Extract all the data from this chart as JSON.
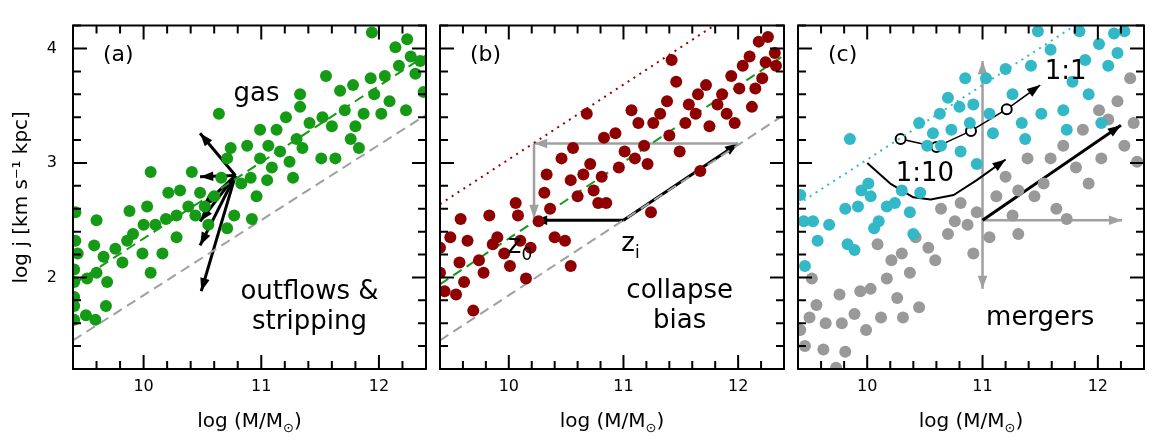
{
  "chart_data": [
    {
      "type": "scatter",
      "xlabel": "log (M/M$_{⊙}$)",
      "ylabel": "log j [km s⁻¹ kpc]",
      "marker": "circle",
      "xlim": [
        9.4,
        12.4
      ],
      "ylim": [
        1.2,
        4.2
      ],
      "xticks": [
        {
          "value": 9.4,
          "label": null
        },
        {
          "value": 9.6,
          "label": null
        },
        {
          "value": 9.8,
          "label": null
        },
        10,
        {
          "value": 10.2,
          "label": null
        },
        {
          "value": 10.4,
          "label": null
        },
        {
          "value": 10.6,
          "label": null
        },
        {
          "value": 10.8,
          "label": null
        },
        11,
        {
          "value": 11.2,
          "label": null
        },
        {
          "value": 11.4,
          "label": null
        },
        {
          "value": 11.6,
          "label": null
        },
        {
          "value": 11.8,
          "label": null
        },
        12,
        {
          "value": 12.2,
          "label": null
        },
        {
          "value": 12.4,
          "label": null
        }
      ],
      "yticks": [
        {
          "value": 1.2,
          "label": null
        },
        {
          "value": 1.4,
          "label": null
        },
        {
          "value": 1.6,
          "label": null
        },
        {
          "value": 1.8,
          "label": null
        },
        2,
        {
          "value": 2.2,
          "label": null
        },
        {
          "value": 2.4,
          "label": null
        },
        {
          "value": 2.6,
          "label": null
        },
        {
          "value": 2.8,
          "label": null
        },
        3,
        {
          "value": 3.2,
          "label": null
        },
        {
          "value": 3.4,
          "label": null
        },
        {
          "value": 3.6,
          "label": null
        },
        {
          "value": 3.8,
          "label": null
        },
        4,
        {
          "value": 4.2,
          "label": null
        }
      ],
      "annotations": [
        "(a)",
        "gas",
        "outflows & stripping"
      ],
      "series": [
        {
          "type": "line",
          "x": [
            9.4,
            12.4
          ],
          "values": [
            1.94,
            3.94
          ],
          "color": "#159a15",
          "line_style": "dashed",
          "marker": "none"
        },
        {
          "type": "line",
          "x": [
            9.4,
            12.4
          ],
          "values": [
            1.45,
            3.42
          ],
          "color": "#a0a0a0",
          "line_style": "dashed",
          "marker": "none"
        },
        {
          "color": "#159a15",
          "x": [
            9.42,
            9.42,
            9.44,
            9.41,
            9.41,
            9.41,
            9.41,
            9.41,
            9.51,
            9.59,
            9.68,
            9.6,
            9.58,
            9.52,
            9.6,
            9.66,
            9.69,
            9.76,
            9.82,
            9.86,
            9.88,
            9.91,
            9.99,
            10.0,
            10.03,
            10.06,
            10.06,
            10.1,
            10.16,
            10.19,
            10.21,
            10.28,
            10.28,
            10.31,
            10.38,
            10.41,
            10.44,
            10.48,
            10.52,
            10.55,
            10.6,
            10.64,
            10.66,
            10.71,
            10.71,
            10.74,
            10.77,
            10.83,
            10.88,
            10.91,
            10.92,
            10.96,
            10.99,
            10.99,
            11.05,
            11.06,
            11.09,
            11.13,
            11.16,
            11.21,
            11.24,
            11.27,
            11.3,
            11.33,
            11.33,
            11.35,
            11.41,
            11.51,
            11.52,
            11.55,
            11.63,
            11.6,
            11.67,
            11.71,
            11.76,
            11.78,
            11.8,
            11.83,
            11.87,
            11.93,
            11.96,
            11.94,
            12.02,
            12.05,
            12.09,
            12.14,
            12.17,
            12.23,
            12.24,
            12.27,
            12.31,
            12.35,
            12.38
          ],
          "values": [
            2.57,
            2.32,
            2.21,
            2.07,
            1.96,
            1.83,
            1.75,
            1.63,
            1.67,
            1.63,
            1.75,
            2.5,
            2.28,
            1.99,
            2.04,
            2.18,
            1.96,
            2.25,
            2.13,
            2.32,
            2.58,
            2.38,
            2.21,
            2.46,
            2.62,
            2.04,
            2.92,
            2.46,
            2.21,
            2.51,
            2.74,
            2.35,
            2.54,
            2.76,
            2.62,
            2.92,
            2.54,
            2.74,
            2.62,
            2.46,
            2.71,
            3.43,
            2.87,
            2.43,
            3.04,
            3.13,
            2.54,
            2.82,
            3.15,
            2.87,
            2.51,
            2.71,
            3.29,
            3.04,
            2.85,
            3.15,
            2.96,
            3.29,
            3.1,
            3.4,
            3.01,
            2.87,
            3.21,
            3.6,
            3.49,
            3.13,
            3.35,
            3.04,
            3.4,
            3.76,
            3.04,
            3.32,
            3.63,
            3.46,
            3.21,
            3.68,
            3.32,
            3.13,
            3.43,
            3.74,
            3.6,
            4.14,
            3.43,
            3.76,
            3.54,
            4.01,
            3.85,
            3.46,
            4.08,
            3.93,
            3.78,
            3.89,
            3.62
          ]
        }
      ]
    },
    {
      "type": "scatter",
      "xlabel": "log (M/M$_{⊙}$)",
      "marker": "circle",
      "tick_labels": "x",
      "xlim": [
        9.4,
        12.4
      ],
      "ylim": [
        1.2,
        4.2
      ],
      "xticks": [
        {
          "value": 9.4,
          "label": null
        },
        {
          "value": 9.6,
          "label": null
        },
        {
          "value": 9.8,
          "label": null
        },
        10,
        {
          "value": 10.2,
          "label": null
        },
        {
          "value": 10.4,
          "label": null
        },
        {
          "value": 10.6,
          "label": null
        },
        {
          "value": 10.8,
          "label": null
        },
        11,
        {
          "value": 11.2,
          "label": null
        },
        {
          "value": 11.4,
          "label": null
        },
        {
          "value": 11.6,
          "label": null
        },
        {
          "value": 11.8,
          "label": null
        },
        12,
        {
          "value": 12.2,
          "label": null
        },
        {
          "value": 12.4,
          "label": null
        }
      ],
      "yticks": [
        {
          "value": 1.2,
          "label": null
        },
        {
          "value": 1.4,
          "label": null
        },
        {
          "value": 1.6,
          "label": null
        },
        {
          "value": 1.8,
          "label": null
        },
        {
          "value": 2,
          "label": null
        },
        {
          "value": 2.2,
          "label": null
        },
        {
          "value": 2.4,
          "label": null
        },
        {
          "value": 2.6,
          "label": null
        },
        {
          "value": 2.8,
          "label": null
        },
        {
          "value": 3,
          "label": null
        },
        {
          "value": 3.2,
          "label": null
        },
        {
          "value": 3.4,
          "label": null
        },
        {
          "value": 3.6,
          "label": null
        },
        {
          "value": 3.8,
          "label": null
        },
        {
          "value": 4,
          "label": null
        },
        {
          "value": 4.2,
          "label": null
        }
      ],
      "annotations": [
        "(b)",
        {
          "text": "z$_{0}$",
          "x": 10.22,
          "y": 2.5
        },
        {
          "text": "z$_{i}$",
          "x": 11,
          "y": 2.5
        },
        "collapse bias"
      ],
      "series": [
        {
          "type": "line",
          "x": [
            9.4,
            12.4
          ],
          "values": [
            1.94,
            3.94
          ],
          "color": "#159a15",
          "line_style": "dashed",
          "marker": "none"
        },
        {
          "type": "line",
          "x": [
            9.4,
            12.4
          ],
          "values": [
            1.45,
            3.42
          ],
          "color": "#a0a0a0",
          "line_style": "dashed",
          "marker": "none"
        },
        {
          "type": "line",
          "x": [
            9.4,
            11.79
          ],
          "values": [
            2.64,
            4.2
          ],
          "color": "#8f0000",
          "line_style": "dotted",
          "marker": "none"
        },
        {
          "color": "#8f0000",
          "x": [
            9.4,
            9.4,
            9.44,
            9.49,
            9.54,
            9.58,
            9.57,
            9.61,
            9.64,
            9.69,
            9.74,
            9.78,
            9.83,
            9.86,
            9.9,
            9.96,
            10.01,
            10.06,
            10.08,
            10.1,
            10.15,
            10.19,
            10.26,
            10.31,
            10.33,
            10.36,
            10.4,
            10.46,
            10.49,
            10.54,
            10.56,
            10.54,
            10.6,
            10.65,
            10.68,
            10.71,
            10.74,
            10.78,
            10.81,
            10.83,
            10.85,
            10.93,
            10.96,
            11.01,
            11.07,
            11.1,
            11.13,
            11.18,
            11.21,
            11.24,
            11.26,
            11.32,
            11.38,
            11.4,
            11.42,
            11.46,
            11.49,
            11.54,
            11.57,
            11.63,
            11.65,
            11.67,
            11.72,
            11.75,
            11.82,
            11.86,
            11.9,
            11.94,
            11.97,
            12.01,
            12.04,
            12.1,
            12.12,
            12.15,
            12.21,
            12.24,
            12.26,
            12.18,
            12.32,
            12.33
          ],
          "values": [
            2.26,
            2.04,
            1.88,
            2.35,
            1.85,
            2.51,
            2.13,
            1.96,
            2.32,
            1.71,
            2.15,
            2.04,
            2.54,
            2.29,
            2.35,
            2.21,
            2.1,
            2.65,
            2.54,
            2.32,
            1.99,
            2.26,
            2.49,
            2.74,
            2.9,
            2.6,
            2.35,
            3.04,
            2.32,
            2.1,
            3.13,
            2.85,
            2.71,
            2.9,
            3.43,
            2.99,
            2.76,
            2.65,
            2.88,
            3.22,
            2.65,
            3.26,
            2.96,
            3.1,
            3.46,
            3.04,
            3.35,
            3.15,
            2.99,
            2.57,
            3.35,
            3.43,
            3.54,
            3.24,
            3.9,
            3.71,
            3.1,
            3.35,
            3.51,
            3.43,
            3.6,
            2.93,
            3.68,
            3.32,
            3.51,
            3.6,
            3.43,
            3.76,
            3.35,
            3.65,
            3.85,
            3.93,
            3.49,
            3.65,
            3.74,
            3.88,
            4.1,
            4.06,
            3.96,
            3.85
          ]
        }
      ]
    },
    {
      "type": "scatter",
      "xlabel": "log (M/M$_{⊙}$)",
      "marker": "circle",
      "tick_labels": "x",
      "xlim": [
        9.4,
        12.4
      ],
      "ylim": [
        1.2,
        4.2
      ],
      "xticks": [
        {
          "value": 9.4,
          "label": null
        },
        {
          "value": 9.6,
          "label": null
        },
        {
          "value": 9.8,
          "label": null
        },
        10,
        {
          "value": 10.2,
          "label": null
        },
        {
          "value": 10.4,
          "label": null
        },
        {
          "value": 10.6,
          "label": null
        },
        {
          "value": 10.8,
          "label": null
        },
        11,
        {
          "value": 11.2,
          "label": null
        },
        {
          "value": 11.4,
          "label": null
        },
        {
          "value": 11.6,
          "label": null
        },
        {
          "value": 11.8,
          "label": null
        },
        12,
        {
          "value": 12.2,
          "label": null
        },
        {
          "value": 12.4,
          "label": null
        }
      ],
      "yticks": [
        {
          "value": 1.2,
          "label": null
        },
        {
          "value": 1.4,
          "label": null
        },
        {
          "value": 1.6,
          "label": null
        },
        {
          "value": 1.8,
          "label": null
        },
        {
          "value": 2,
          "label": null
        },
        {
          "value": 2.2,
          "label": null
        },
        {
          "value": 2.4,
          "label": null
        },
        {
          "value": 2.6,
          "label": null
        },
        {
          "value": 2.8,
          "label": null
        },
        {
          "value": 3,
          "label": null
        },
        {
          "value": 3.2,
          "label": null
        },
        {
          "value": 3.4,
          "label": null
        },
        {
          "value": 3.6,
          "label": null
        },
        {
          "value": 3.8,
          "label": null
        },
        {
          "value": 4,
          "label": null
        },
        {
          "value": 4.2,
          "label": null
        }
      ],
      "annotations": [
        "(c)",
        "1:1",
        "1:10",
        "mergers"
      ],
      "series": [
        {
          "type": "line",
          "x": [
            9.4,
            11.8
          ],
          "values": [
            2.64,
            4.2
          ],
          "color": "#33b8c8",
          "line_style": "dotted",
          "marker": "none"
        },
        {
          "color": "#999999",
          "x": [
            9.42,
            9.46,
            9.5,
            9.52,
            9.56,
            9.62,
            9.64,
            9.73,
            9.76,
            9.78,
            9.81,
            9.89,
            9.94,
            9.99,
            10.03,
            10.09,
            10.12,
            10.17,
            10.21,
            10.26,
            10.3,
            10.31,
            10.37,
            10.42,
            10.45,
            10.53,
            10.59,
            10.64,
            10.7,
            10.76,
            10.81,
            10.87,
            10.92,
            10.95,
            11.06,
            11.12,
            11.2,
            11.26,
            11.31,
            11.31,
            11.39,
            11.45,
            11.53,
            11.59,
            11.64,
            11.7,
            11.73,
            11.81,
            11.87,
            11.92,
            12.01,
            12.03,
            12.09,
            12.17,
            12.23,
            12.28,
            12.31,
            12.34
          ],
          "values": [
            1.54,
            1.4,
            1.65,
            1.99,
            1.76,
            1.37,
            1.6,
            1.21,
            1.85,
            1.6,
            1.35,
            1.68,
            1.88,
            1.54,
            1.9,
            2.29,
            1.65,
            1.99,
            2.15,
            1.82,
            2.21,
            1.65,
            2.04,
            2.35,
            1.74,
            2.26,
            2.15,
            2.6,
            2.38,
            2.49,
            2.65,
            2.46,
            2.21,
            2.57,
            2.35,
            2.71,
            2.88,
            2.54,
            2.38,
            2.76,
            3.04,
            2.71,
            2.82,
            3.04,
            2.6,
            3.15,
            2.51,
            2.96,
            3.29,
            2.82,
            3.46,
            3.04,
            3.38,
            3.54,
            3.15,
            3.74,
            3.35,
            3.01
          ]
        },
        {
          "color": "#33b8c8",
          "x": [
            9.42,
            9.45,
            9.46,
            9.53,
            9.57,
            9.67,
            9.81,
            9.83,
            9.85,
            9.89,
            9.92,
            9.95,
            10.01,
            10.03,
            10.06,
            10.1,
            10.17,
            10.24,
            10.3,
            10.37,
            10.4,
            10.45,
            10.46,
            10.52,
            10.57,
            10.63,
            10.64,
            10.7,
            10.73,
            10.8,
            10.81,
            10.85,
            10.89,
            10.92,
            10.95,
            11.03,
            11.06,
            11.09,
            11.2,
            11.26,
            11.34,
            11.37,
            11.42,
            11.48,
            11.51,
            11.59,
            11.7,
            11.73,
            11.78,
            11.84,
            11.89,
            11.92,
            12.01,
            12.03,
            12.09,
            12.14,
            12.17,
            12.23
          ],
          "values": [
            2.72,
            2.49,
            2.1,
            2.49,
            2.32,
            2.46,
            2.6,
            2.29,
            3.21,
            2.24,
            2.62,
            2.76,
            2.82,
            2.71,
            2.43,
            2.49,
            2.62,
            2.65,
            2.76,
            2.57,
            2.38,
            3.35,
            2.74,
            3.15,
            3.26,
            3.43,
            3.15,
            3.57,
            3.29,
            3.49,
            3.1,
            3.74,
            3.35,
            3.51,
            2.99,
            3.74,
            3.43,
            3.26,
            3.82,
            3.6,
            3.35,
            3.21,
            3.85,
            4.15,
            3.43,
            3.99,
            3.46,
            3.29,
            3.71,
            4.15,
            3.9,
            3.6,
            4.04,
            3.35,
            3.85,
            4.13,
            3.96,
            4.15
          ]
        }
      ]
    }
  ]
}
